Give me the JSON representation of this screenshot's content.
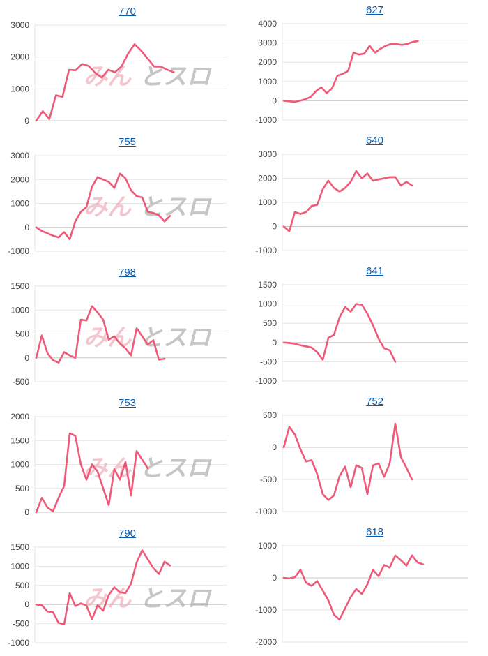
{
  "colors": {
    "line": "#ee5a78",
    "grid": "#e6e6e6",
    "zero": "#c8c8c8",
    "axis_text": "#444444",
    "title": "#0b5cad",
    "watermark_pink": "#f0b4bd",
    "watermark_gray": "#b4b4b4"
  },
  "watermark": {
    "text_left": "みん",
    "text_right": "とスロ"
  },
  "chart_data": [
    {
      "type": "line",
      "title": "770",
      "ylim": [
        0,
        3000
      ],
      "yticks": [
        0,
        1000,
        2000,
        3000
      ],
      "values": [
        0,
        300,
        50,
        800,
        750,
        1600,
        1580,
        1780,
        1720,
        1500,
        1350,
        1600,
        1520,
        1700,
        2100,
        2400,
        2200,
        1950,
        1700,
        1700,
        1600,
        1520
      ]
    },
    {
      "type": "line",
      "title": "627",
      "ylim": [
        -1000,
        4000
      ],
      "yticks": [
        -1000,
        0,
        1000,
        2000,
        3000,
        4000
      ],
      "values": [
        0,
        -30,
        -60,
        0,
        80,
        200,
        500,
        700,
        400,
        650,
        1300,
        1400,
        1550,
        2500,
        2400,
        2450,
        2850,
        2500,
        2700,
        2850,
        2950,
        2950,
        2900,
        2950,
        3050,
        3100
      ]
    },
    {
      "type": "line",
      "title": "755",
      "ylim": [
        -1000,
        3000
      ],
      "yticks": [
        -1000,
        0,
        1000,
        2000,
        3000
      ],
      "values": [
        0,
        -150,
        -250,
        -350,
        -420,
        -200,
        -500,
        250,
        650,
        850,
        1700,
        2100,
        2000,
        1900,
        1650,
        2250,
        2050,
        1550,
        1300,
        1250,
        650,
        600,
        500,
        250,
        480
      ]
    },
    {
      "type": "line",
      "title": "640",
      "ylim": [
        -1000,
        3000
      ],
      "yticks": [
        -1000,
        0,
        1000,
        2000,
        3000
      ],
      "values": [
        0,
        -200,
        600,
        520,
        600,
        850,
        900,
        1550,
        1900,
        1600,
        1450,
        1600,
        1850,
        2300,
        2000,
        2200,
        1900,
        1950,
        2000,
        2050,
        2050,
        1700,
        1850,
        1700
      ]
    },
    {
      "type": "line",
      "title": "798",
      "ylim": [
        -500,
        1500
      ],
      "yticks": [
        -500,
        0,
        500,
        1000,
        1500
      ],
      "values": [
        0,
        470,
        100,
        -50,
        -100,
        120,
        50,
        0,
        800,
        780,
        1080,
        950,
        800,
        380,
        450,
        300,
        200,
        50,
        620,
        450,
        280,
        370,
        -40,
        -20
      ]
    },
    {
      "type": "line",
      "title": "641",
      "ylim": [
        -1000,
        1500
      ],
      "yticks": [
        -1000,
        -500,
        0,
        500,
        1000,
        1500
      ],
      "values": [
        0,
        -10,
        -30,
        -70,
        -100,
        -130,
        -250,
        -450,
        120,
        200,
        650,
        920,
        800,
        1000,
        980,
        750,
        450,
        100,
        -150,
        -200,
        -500
      ]
    },
    {
      "type": "line",
      "title": "753",
      "ylim": [
        0,
        2000
      ],
      "yticks": [
        0,
        500,
        1000,
        1500,
        2000
      ],
      "values": [
        0,
        300,
        100,
        20,
        300,
        550,
        1650,
        1600,
        1000,
        680,
        1000,
        850,
        500,
        150,
        900,
        680,
        1050,
        350,
        1280,
        1100,
        920
      ]
    },
    {
      "type": "line",
      "title": "752",
      "ylim": [
        -1000,
        500
      ],
      "yticks": [
        -1000,
        -500,
        0,
        500
      ],
      "values": [
        0,
        320,
        200,
        -30,
        -220,
        -200,
        -420,
        -730,
        -820,
        -750,
        -450,
        -300,
        -620,
        -280,
        -320,
        -730,
        -280,
        -250,
        -460,
        -250,
        370,
        -150,
        -320,
        -500
      ]
    },
    {
      "type": "line",
      "title": "790",
      "ylim": [
        -1000,
        1500
      ],
      "yticks": [
        -1000,
        -500,
        0,
        500,
        1000,
        1500
      ],
      "values": [
        0,
        -20,
        -180,
        -200,
        -480,
        -520,
        300,
        -40,
        30,
        -30,
        -380,
        -20,
        -160,
        250,
        450,
        320,
        300,
        550,
        1100,
        1420,
        1180,
        950,
        800,
        1120,
        1020
      ]
    },
    {
      "type": "line",
      "title": "618",
      "ylim": [
        -2000,
        1000
      ],
      "yticks": [
        -2000,
        -1000,
        0,
        1000
      ],
      "values": [
        0,
        -20,
        20,
        250,
        -150,
        -250,
        -100,
        -400,
        -700,
        -1150,
        -1300,
        -950,
        -600,
        -350,
        -500,
        -200,
        250,
        50,
        400,
        320,
        700,
        550,
        380,
        700,
        480,
        420
      ]
    }
  ]
}
